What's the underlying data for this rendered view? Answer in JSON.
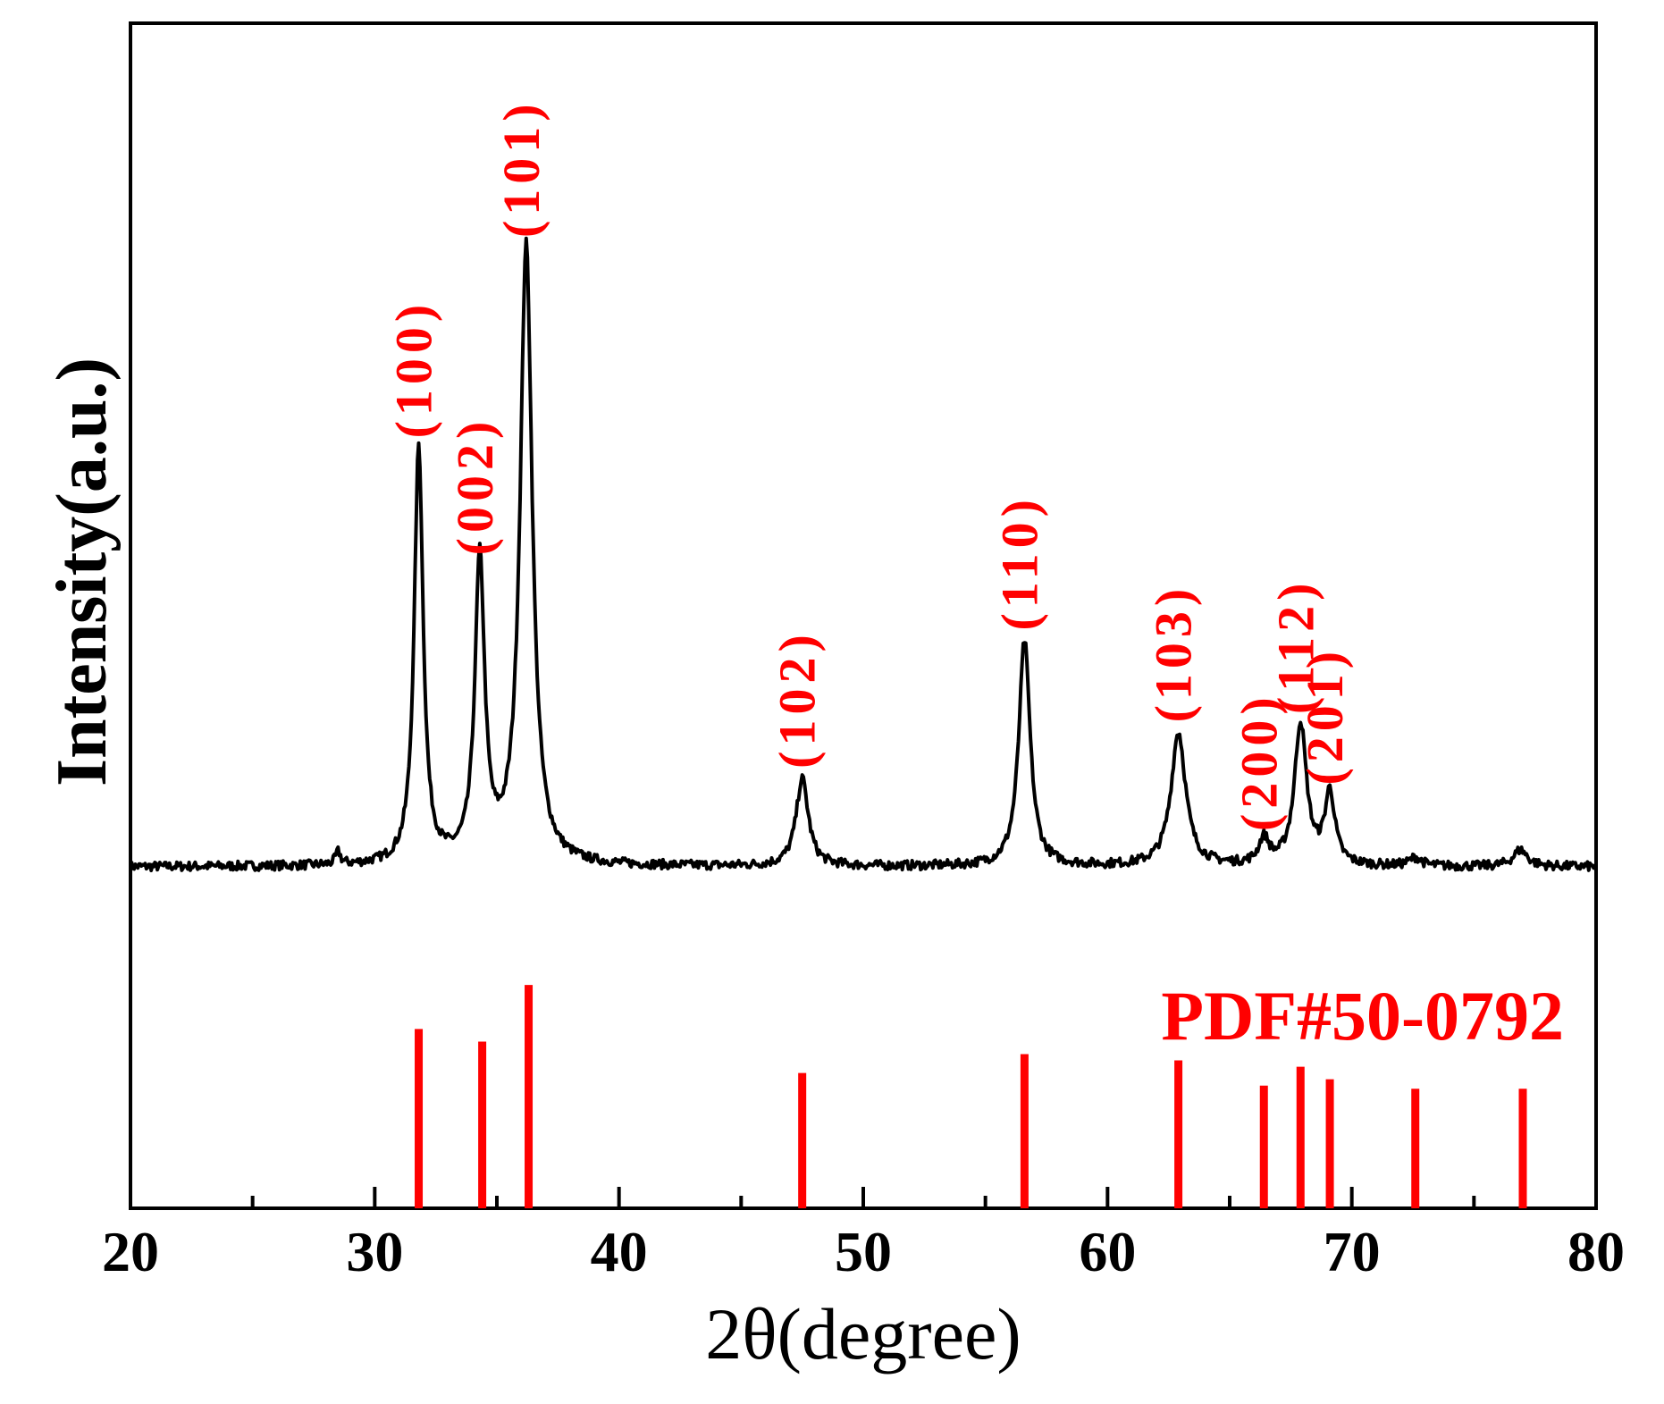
{
  "chart_data": {
    "type": "line",
    "title": "",
    "xlabel": "2θ(degree)",
    "ylabel": "Intensity(a.u.)",
    "xlim": [
      20,
      80
    ],
    "x_ticks": [
      "20",
      "30",
      "40",
      "50",
      "60",
      "70",
      "80"
    ],
    "y_ticks": [],
    "grid": false,
    "colors": {
      "pattern": "#000000",
      "annotation": "#ff0000",
      "reference": "#ff0000"
    },
    "pattern": {
      "baseline": 0,
      "ylim": [
        -4,
        148
      ],
      "peaks": [
        {
          "x": 28.5,
          "y": 3,
          "width": 0.12
        },
        {
          "x": 31.8,
          "y": 100,
          "width": 0.22
        },
        {
          "x": 34.3,
          "y": 72,
          "width": 0.24
        },
        {
          "x": 36.2,
          "y": 148,
          "width": 0.3
        },
        {
          "x": 47.5,
          "y": 21,
          "width": 0.3
        },
        {
          "x": 56.6,
          "y": 54,
          "width": 0.28
        },
        {
          "x": 62.9,
          "y": 32,
          "width": 0.36
        },
        {
          "x": 66.4,
          "y": 6,
          "width": 0.25
        },
        {
          "x": 67.9,
          "y": 34,
          "width": 0.3
        },
        {
          "x": 69.1,
          "y": 17,
          "width": 0.25
        },
        {
          "x": 72.6,
          "y": 2,
          "width": 0.3
        },
        {
          "x": 76.9,
          "y": 4,
          "width": 0.35
        }
      ]
    },
    "annotations": [
      {
        "text": "(100)",
        "x": 31.8,
        "y": 100
      },
      {
        "text": "(002)",
        "x": 34.3,
        "y": 72
      },
      {
        "text": "(101)",
        "x": 36.2,
        "y": 148
      },
      {
        "text": "(102)",
        "x": 47.5,
        "y": 21
      },
      {
        "text": "(110)",
        "x": 56.6,
        "y": 54
      },
      {
        "text": "(103)",
        "x": 62.9,
        "y": 32
      },
      {
        "text": "(200)",
        "x": 66.4,
        "y": 6
      },
      {
        "text": "(112)",
        "x": 67.9,
        "y": 34
      },
      {
        "text": "(201)",
        "x": 69.1,
        "y": 17
      }
    ],
    "reference": {
      "label": "PDF#50-0792",
      "ylim": [
        0,
        100
      ],
      "lines": [
        {
          "x": 31.8,
          "intensity": 57
        },
        {
          "x": 34.4,
          "intensity": 53
        },
        {
          "x": 36.3,
          "intensity": 71
        },
        {
          "x": 47.5,
          "intensity": 43
        },
        {
          "x": 56.6,
          "intensity": 49
        },
        {
          "x": 62.9,
          "intensity": 47
        },
        {
          "x": 66.4,
          "intensity": 39
        },
        {
          "x": 67.9,
          "intensity": 45
        },
        {
          "x": 69.1,
          "intensity": 41
        },
        {
          "x": 72.6,
          "intensity": 38
        },
        {
          "x": 77.0,
          "intensity": 38
        }
      ]
    }
  }
}
